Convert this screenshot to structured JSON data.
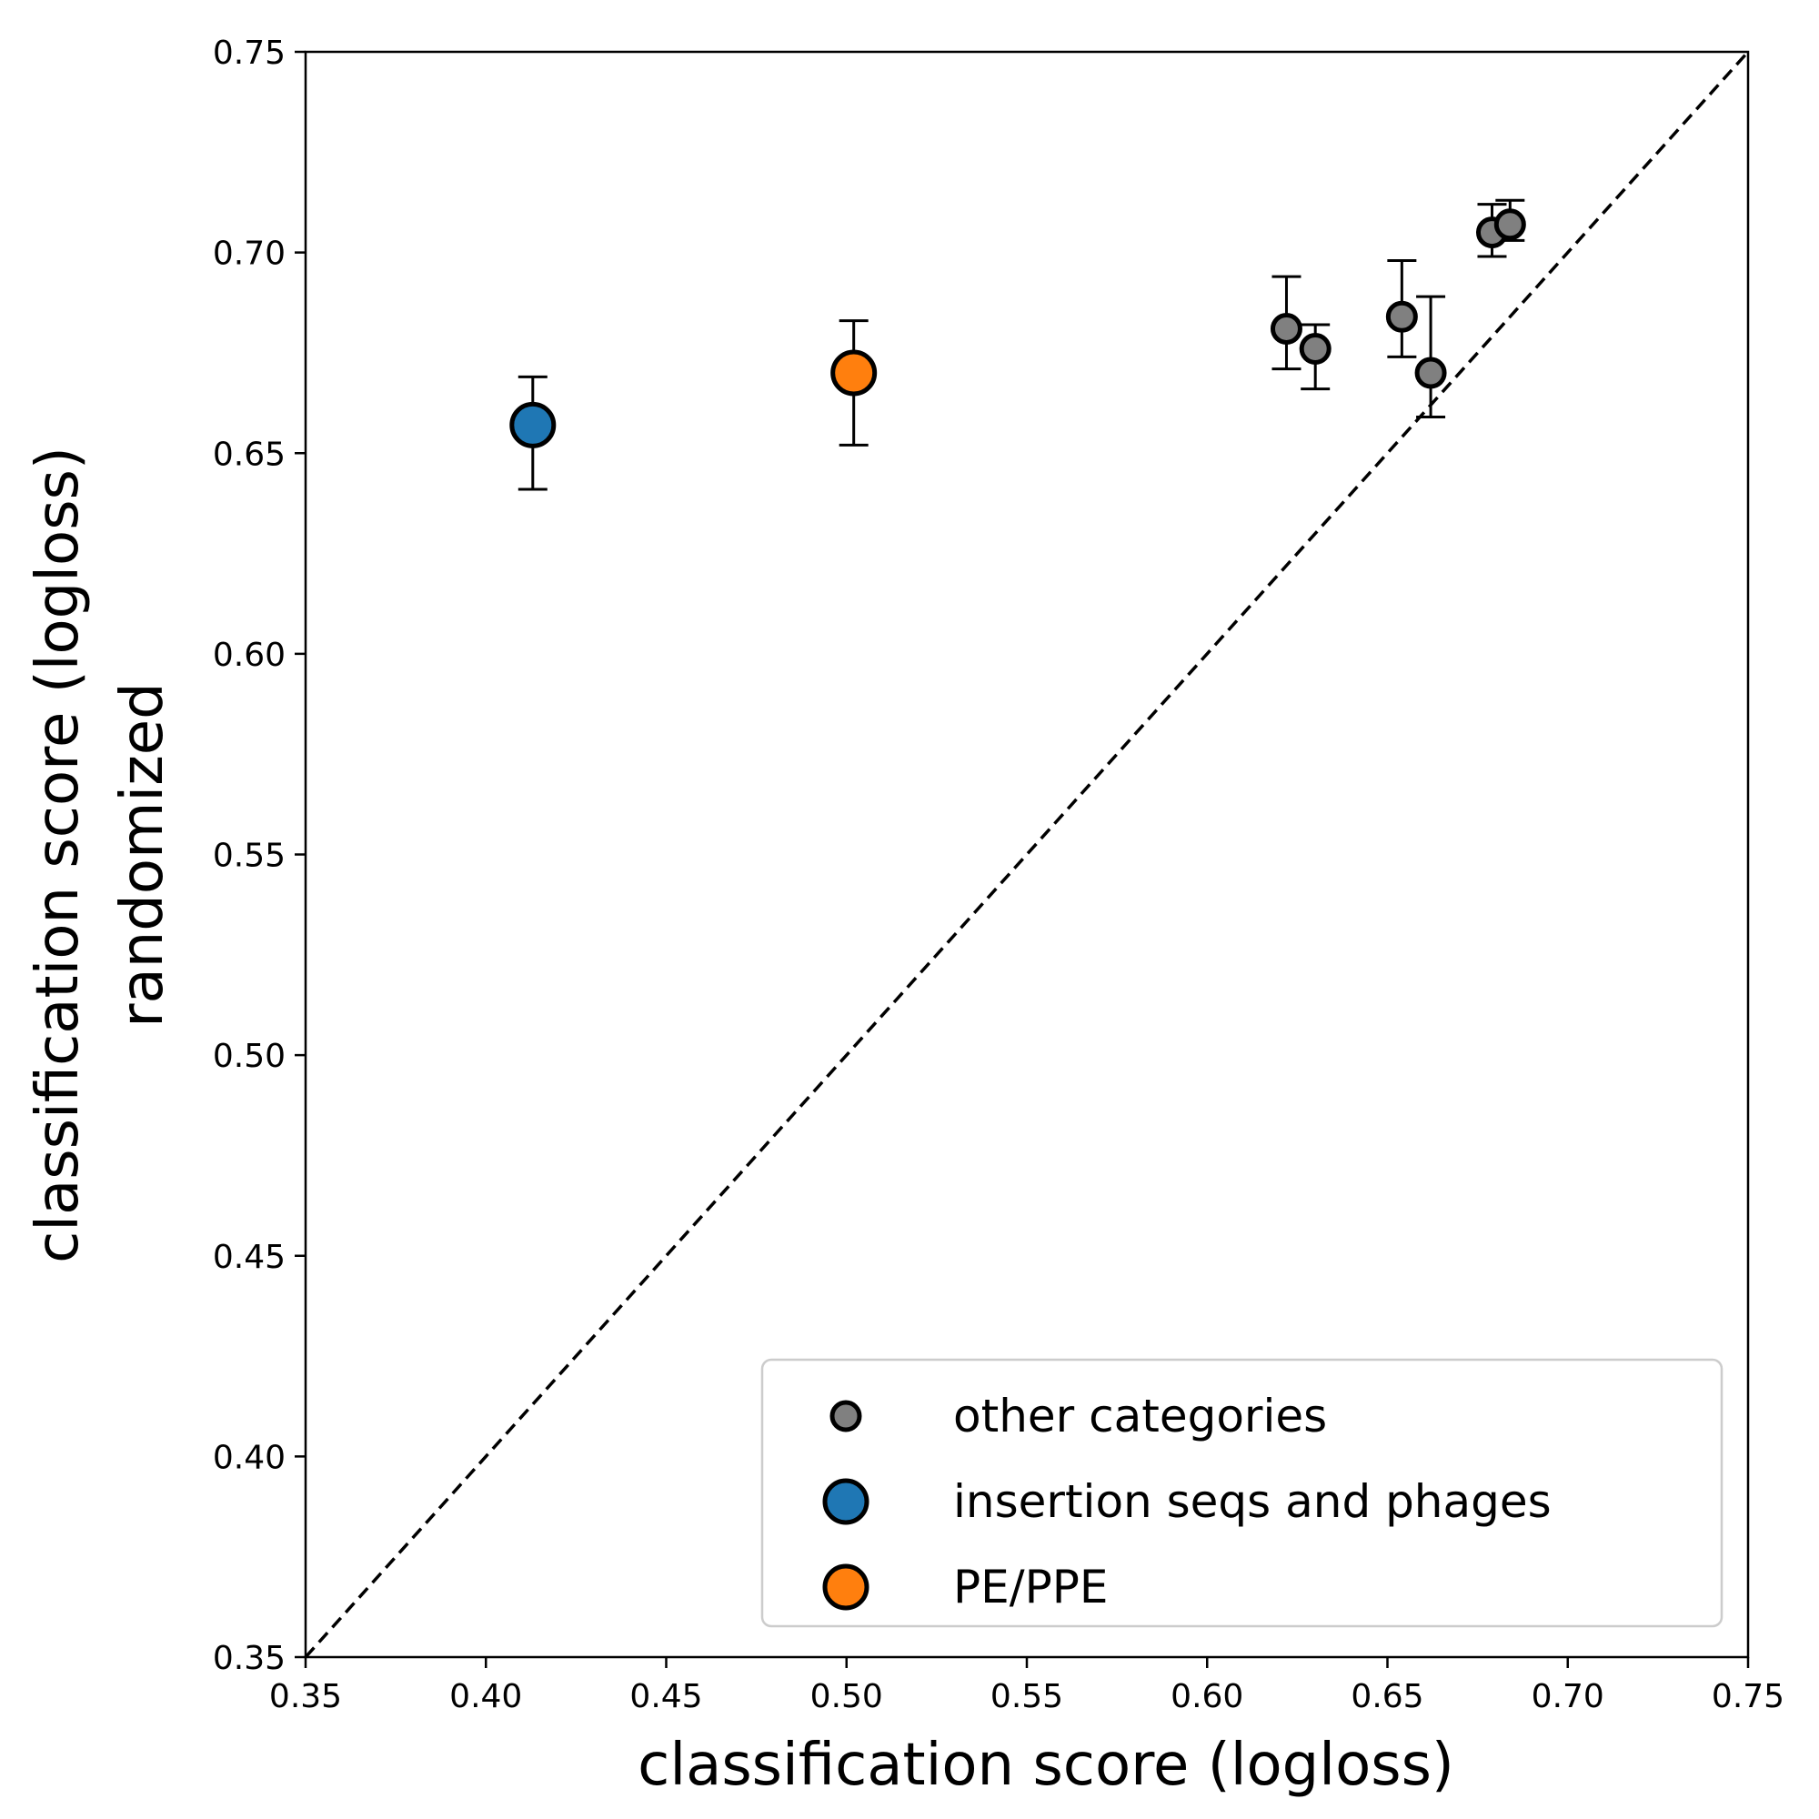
{
  "chart_data": {
    "type": "scatter",
    "xlabel": "classification score (logloss)",
    "ylabel_lines": [
      "classification score (logloss)",
      "randomized"
    ],
    "xlim": [
      0.35,
      0.75
    ],
    "ylim": [
      0.35,
      0.75
    ],
    "x_ticks": [
      "0.35",
      "0.40",
      "0.45",
      "0.50",
      "0.55",
      "0.60",
      "0.65",
      "0.70",
      "0.75"
    ],
    "y_ticks": [
      "0.35",
      "0.40",
      "0.45",
      "0.50",
      "0.55",
      "0.60",
      "0.65",
      "0.70",
      "0.75"
    ],
    "grid": false,
    "diagonal_reference_line": true,
    "legend_position": "lower-right",
    "series": [
      {
        "name": "other categories",
        "color": "#808080",
        "size": "small",
        "points": [
          {
            "x": 0.622,
            "y": 0.681,
            "y_lo": 0.671,
            "y_hi": 0.694
          },
          {
            "x": 0.63,
            "y": 0.676,
            "y_lo": 0.666,
            "y_hi": 0.682
          },
          {
            "x": 0.654,
            "y": 0.684,
            "y_lo": 0.674,
            "y_hi": 0.698
          },
          {
            "x": 0.662,
            "y": 0.67,
            "y_lo": 0.659,
            "y_hi": 0.689
          },
          {
            "x": 0.679,
            "y": 0.705,
            "y_lo": 0.699,
            "y_hi": 0.712
          },
          {
            "x": 0.684,
            "y": 0.707,
            "y_lo": 0.703,
            "y_hi": 0.713
          }
        ]
      },
      {
        "name": "insertion seqs and phages",
        "color": "#1f77b4",
        "size": "large",
        "points": [
          {
            "x": 0.413,
            "y": 0.657,
            "y_lo": 0.641,
            "y_hi": 0.669
          }
        ]
      },
      {
        "name": "PE/PPE",
        "color": "#ff7f0e",
        "size": "large",
        "points": [
          {
            "x": 0.502,
            "y": 0.67,
            "y_lo": 0.652,
            "y_hi": 0.683
          }
        ]
      }
    ]
  }
}
